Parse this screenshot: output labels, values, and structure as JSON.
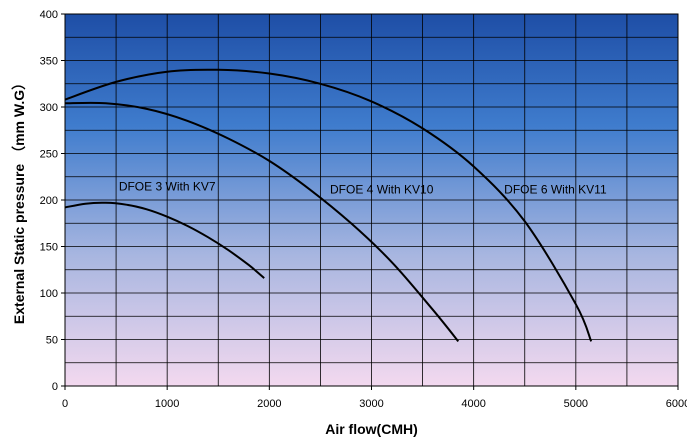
{
  "chart_data": {
    "type": "line",
    "xlabel": "Air flow(CMH)",
    "ylabel": "External Static  pressure （mm W.G）",
    "xlim": [
      0,
      6000
    ],
    "ylim": [
      0,
      400
    ],
    "x_ticks": [
      "0",
      "1000",
      "2000",
      "3000",
      "4000",
      "5000",
      "6000"
    ],
    "y_ticks": [
      "0",
      "50",
      "100",
      "150",
      "200",
      "250",
      "300",
      "350",
      "400"
    ],
    "x_tick_values": [
      0,
      1000,
      2000,
      3000,
      4000,
      5000,
      6000
    ],
    "y_tick_values": [
      0,
      50,
      100,
      150,
      200,
      250,
      300,
      350,
      400
    ],
    "x_minor_step": 500,
    "y_minor_step": 25,
    "grid": true,
    "legend": "none",
    "background_gradient": [
      "#1e4ea6",
      "#3f7ccd",
      "#a8b6e0",
      "#f3d9ef"
    ],
    "line_color": "#000000",
    "series": [
      {
        "name": "DFOE 3 With KV7",
        "x": [
          0,
          200,
          400,
          600,
          800,
          1000,
          1200,
          1400,
          1600,
          1800,
          1950
        ],
        "y": [
          192,
          196,
          197,
          195,
          190,
          182,
          172,
          160,
          146,
          130,
          116
        ],
        "label_at": [
          1000,
          210
        ]
      },
      {
        "name": "DFOE 4 With KV10",
        "x": [
          0,
          400,
          800,
          1200,
          1600,
          2000,
          2400,
          2800,
          3200,
          3600,
          3850
        ],
        "y": [
          304,
          304,
          298,
          285,
          266,
          242,
          211,
          175,
          133,
          82,
          48
        ],
        "label_at": [
          3100,
          207
        ]
      },
      {
        "name": "DFOE 6 With KV11",
        "x": [
          0,
          500,
          1000,
          1500,
          2000,
          2500,
          3000,
          3500,
          4000,
          4500,
          5000,
          5150
        ],
        "y": [
          308,
          327,
          338,
          340,
          336,
          325,
          306,
          277,
          236,
          177,
          88,
          48
        ],
        "label_at": [
          4800,
          207
        ]
      }
    ]
  }
}
